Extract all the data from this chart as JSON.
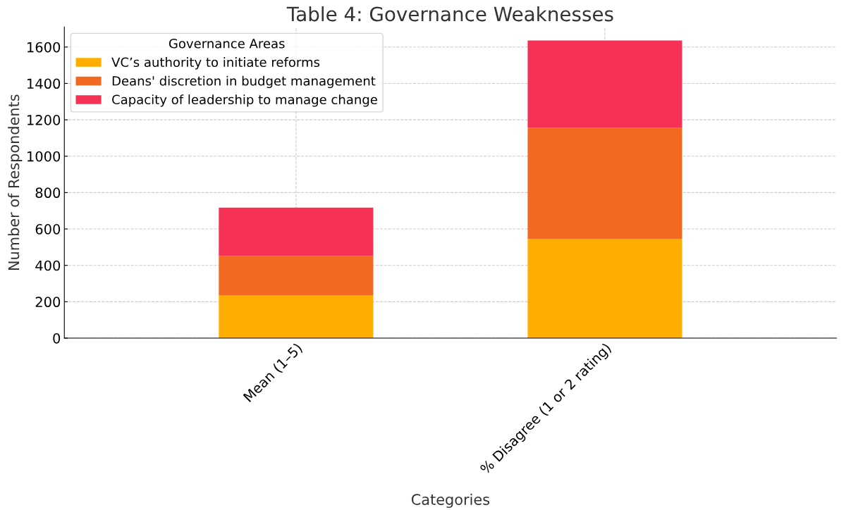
{
  "chart_data": {
    "type": "bar",
    "title": "Table 4: Governance Weaknesses",
    "xlabel": "Categories",
    "ylabel": "Number of Respondents",
    "legend_title": "Governance Areas",
    "categories": [
      "Mean (1–5)",
      "% Disagree (1 or 2 rating)"
    ],
    "stacked": true,
    "series": [
      {
        "name": "VC’s authority to initiate reforms",
        "color": "#ffae00",
        "values": [
          236,
          545
        ]
      },
      {
        "name": "Deans' discretion in budget management",
        "color": "#f26922",
        "values": [
          215,
          611
        ]
      },
      {
        "name": "Capacity of leadership to manage change",
        "color": "#f53155",
        "values": [
          266,
          480
        ]
      }
    ],
    "ylim": [
      0,
      1710
    ],
    "yticks": [
      0,
      200,
      400,
      600,
      800,
      1000,
      1200,
      1400,
      1600
    ],
    "grid": true,
    "legend": "top left"
  }
}
